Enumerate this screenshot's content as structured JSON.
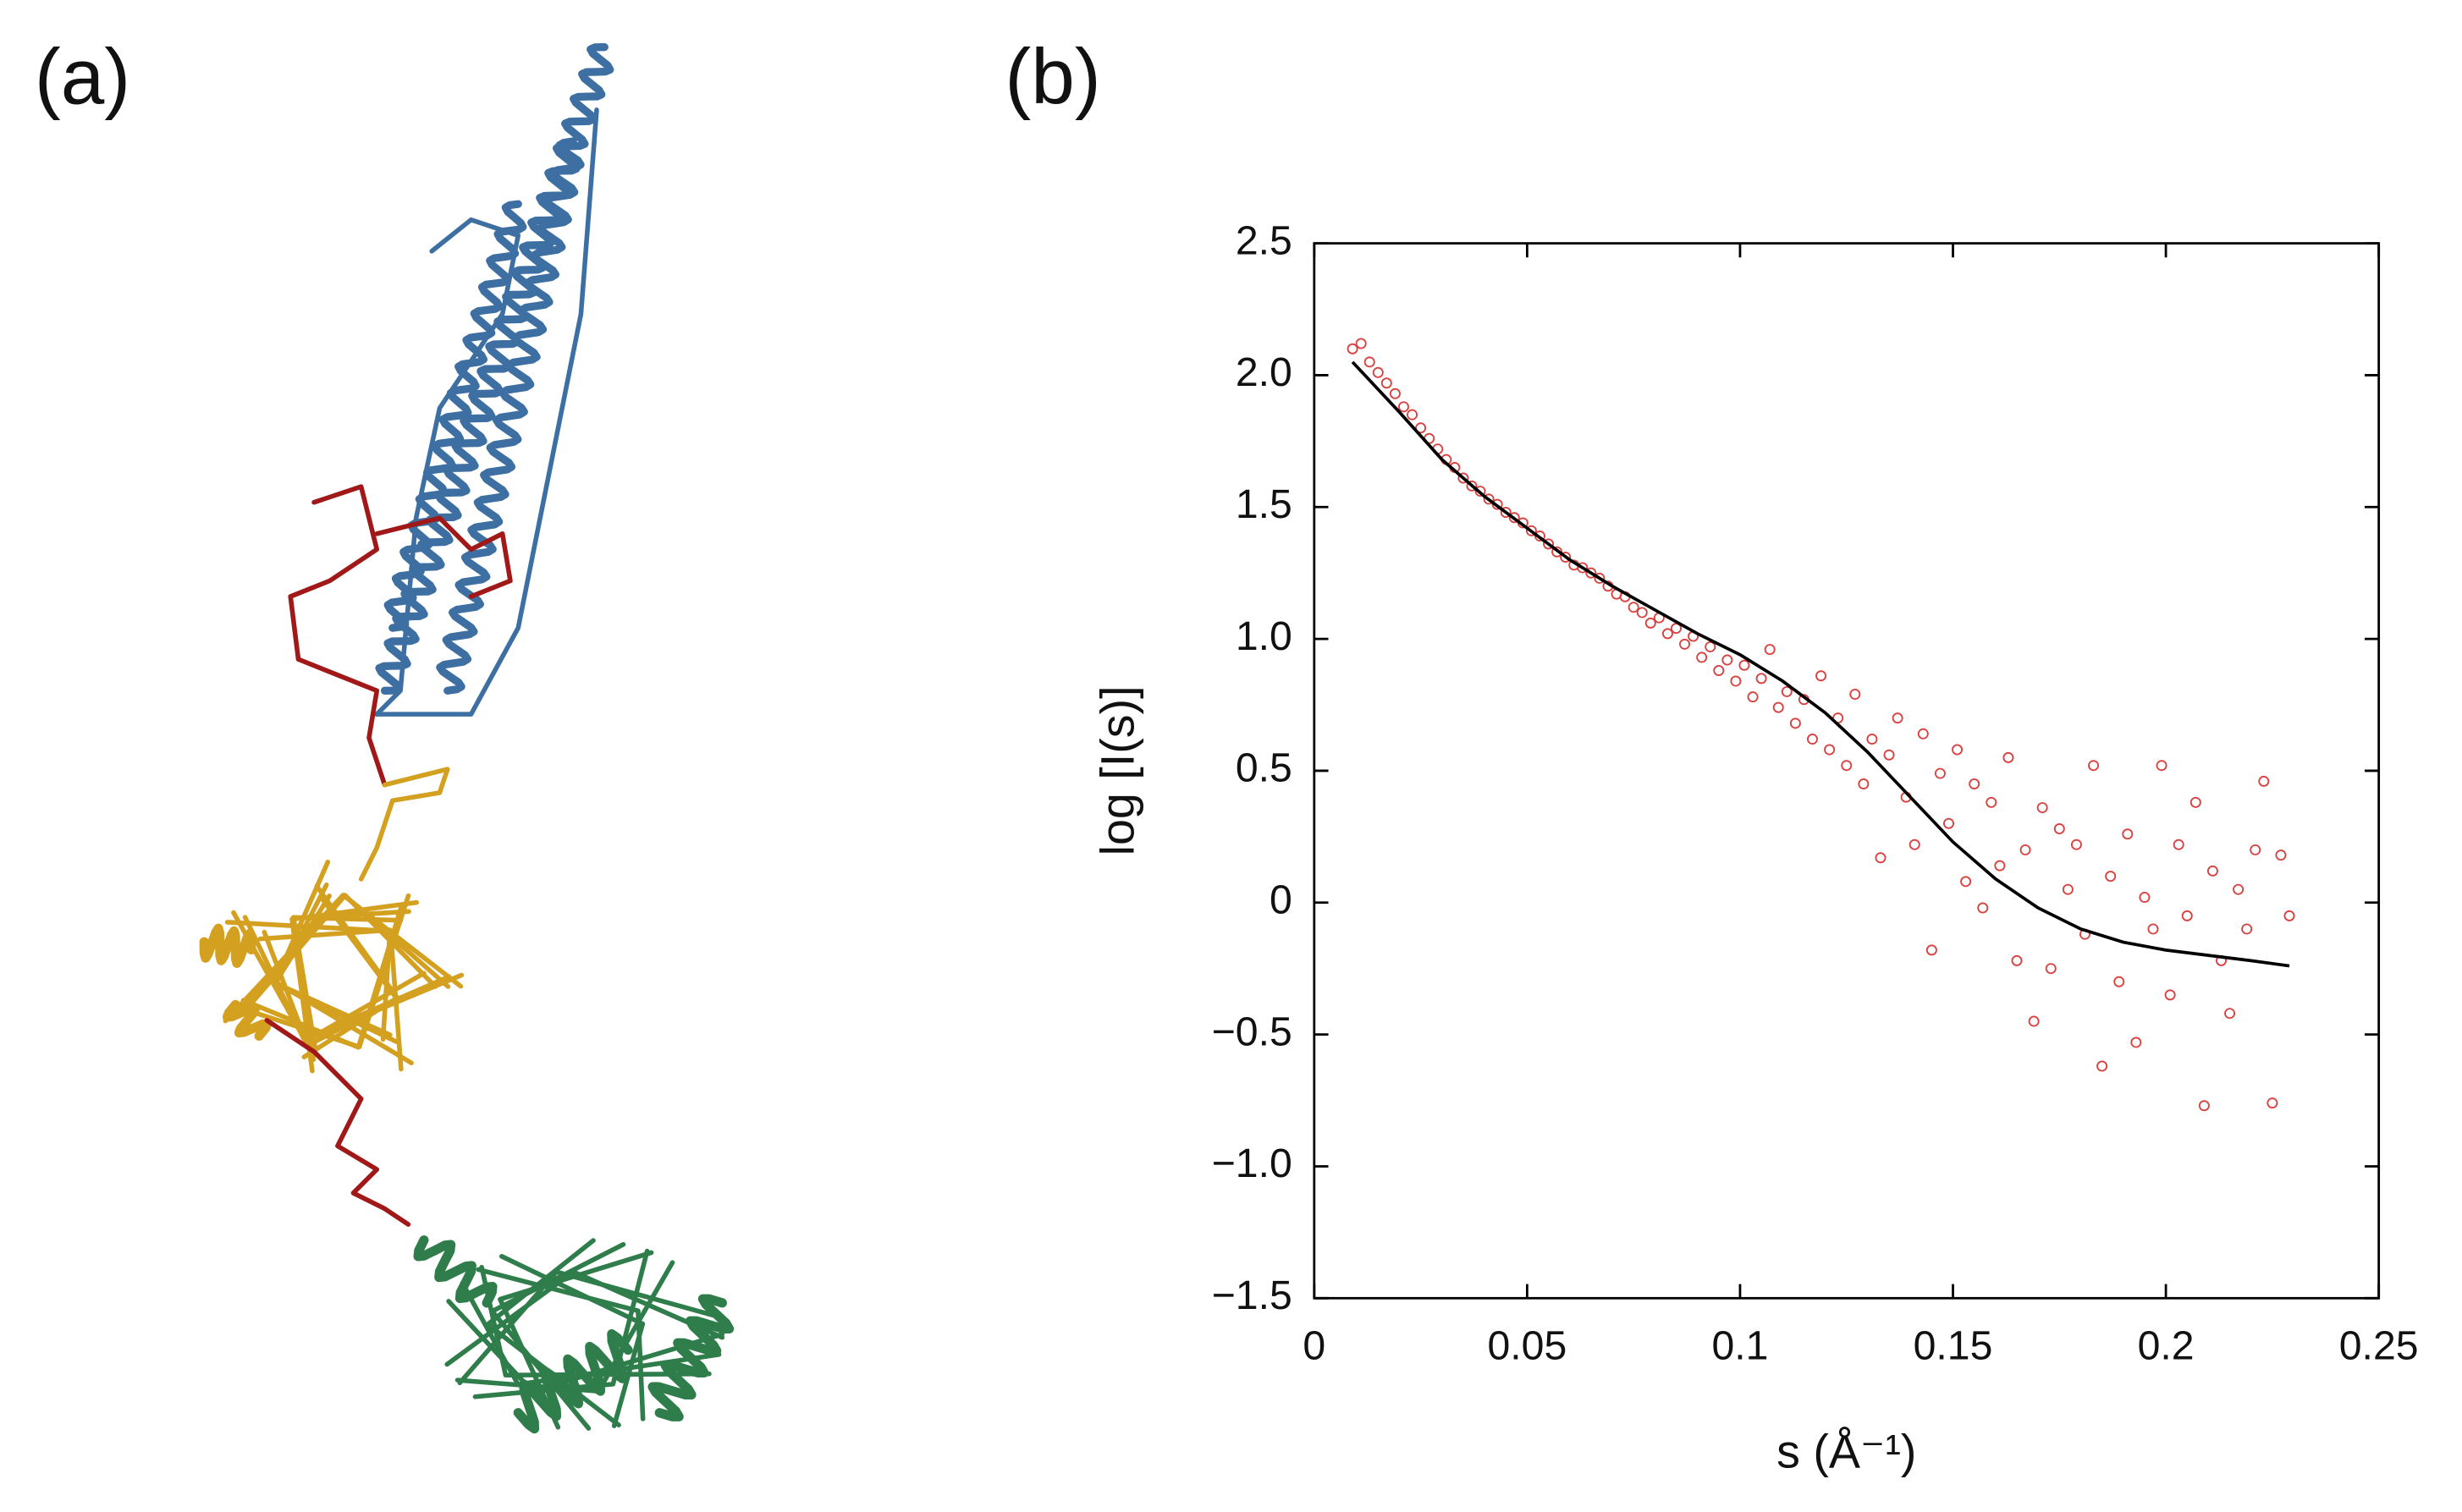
{
  "panels": {
    "a": "(a)",
    "b": "(b)"
  },
  "chart_data": {
    "type": "scatter",
    "xlabel": "s (Å⁻¹)",
    "ylabel": "log [I(s)]",
    "xlim": [
      0,
      0.25
    ],
    "xticks": [
      0,
      0.05,
      0.1,
      0.15,
      0.2,
      0.25
    ],
    "ylim": [
      -1.5,
      2.5
    ],
    "yticks": [
      {
        "value": -1.5,
        "label": "−1.5"
      },
      {
        "value": -1,
        "label": "−1.0"
      },
      {
        "value": -0.5,
        "label": "−0.5"
      },
      0,
      0.5,
      {
        "value": 1,
        "label": "1.0"
      },
      1.5,
      {
        "value": 2,
        "label": "2.0"
      },
      2.5
    ],
    "series": [
      {
        "type": "scatter",
        "color": "#d9413f",
        "x": [
          0.009,
          0.011,
          0.013,
          0.015,
          0.017,
          0.019,
          0.021,
          0.023,
          0.025,
          0.027,
          0.029,
          0.031,
          0.033,
          0.035,
          0.037,
          0.039,
          0.041,
          0.043,
          0.045,
          0.047,
          0.049,
          0.051,
          0.053,
          0.055,
          0.057,
          0.059,
          0.061,
          0.063,
          0.065,
          0.067,
          0.069,
          0.071,
          0.073,
          0.075,
          0.077,
          0.079,
          0.081,
          0.083,
          0.085,
          0.087,
          0.089,
          0.091,
          0.093,
          0.095,
          0.097,
          0.099,
          0.101,
          0.103,
          0.105,
          0.107,
          0.109,
          0.111,
          0.113,
          0.115,
          0.117,
          0.119,
          0.121,
          0.123,
          0.125,
          0.127,
          0.129,
          0.131,
          0.133,
          0.135,
          0.137,
          0.139,
          0.141,
          0.143,
          0.145,
          0.147,
          0.149,
          0.151,
          0.153,
          0.155,
          0.157,
          0.159,
          0.161,
          0.163,
          0.165,
          0.167,
          0.169,
          0.171,
          0.173,
          0.175,
          0.177,
          0.179,
          0.181,
          0.183,
          0.185,
          0.187,
          0.189,
          0.191,
          0.193,
          0.195,
          0.197,
          0.199,
          0.201,
          0.203,
          0.205,
          0.207,
          0.209,
          0.211,
          0.213,
          0.215,
          0.217,
          0.219,
          0.221,
          0.223,
          0.225,
          0.227,
          0.229
        ],
        "values": [
          2.1,
          2.12,
          2.05,
          2.01,
          1.97,
          1.93,
          1.88,
          1.85,
          1.8,
          1.76,
          1.72,
          1.68,
          1.65,
          1.61,
          1.58,
          1.56,
          1.53,
          1.51,
          1.48,
          1.46,
          1.44,
          1.41,
          1.39,
          1.36,
          1.33,
          1.31,
          1.28,
          1.27,
          1.25,
          1.23,
          1.2,
          1.17,
          1.16,
          1.12,
          1.1,
          1.06,
          1.08,
          1.02,
          1.04,
          0.98,
          1.01,
          0.93,
          0.97,
          0.88,
          0.92,
          0.84,
          0.9,
          0.78,
          0.85,
          0.96,
          0.74,
          0.8,
          0.68,
          0.77,
          0.62,
          0.86,
          0.58,
          0.7,
          0.52,
          0.79,
          0.45,
          0.62,
          0.17,
          0.56,
          0.7,
          0.4,
          0.22,
          0.64,
          -0.18,
          0.49,
          0.3,
          0.58,
          0.08,
          0.45,
          -0.02,
          0.38,
          0.14,
          0.55,
          -0.22,
          0.2,
          -0.45,
          0.36,
          -0.25,
          0.28,
          0.05,
          0.22,
          -0.12,
          0.52,
          -0.62,
          0.1,
          -0.3,
          0.26,
          -0.53,
          0.02,
          -0.1,
          0.52,
          -0.35,
          0.22,
          -0.05,
          0.38,
          -0.77,
          0.12,
          -0.22,
          -0.42,
          0.05,
          -0.1,
          0.2,
          0.46,
          -0.76,
          0.18,
          -0.05
        ]
      },
      {
        "type": "line",
        "color": "#000000",
        "x": [
          0.009,
          0.02,
          0.03,
          0.04,
          0.05,
          0.06,
          0.07,
          0.08,
          0.09,
          0.1,
          0.11,
          0.12,
          0.13,
          0.14,
          0.15,
          0.16,
          0.17,
          0.18,
          0.19,
          0.2,
          0.21,
          0.22,
          0.229
        ],
        "values": [
          2.05,
          1.86,
          1.68,
          1.54,
          1.42,
          1.3,
          1.2,
          1.11,
          1.02,
          0.94,
          0.84,
          0.72,
          0.57,
          0.4,
          0.23,
          0.09,
          -0.02,
          -0.1,
          -0.15,
          -0.18,
          -0.2,
          -0.22,
          -0.24
        ]
      }
    ]
  }
}
